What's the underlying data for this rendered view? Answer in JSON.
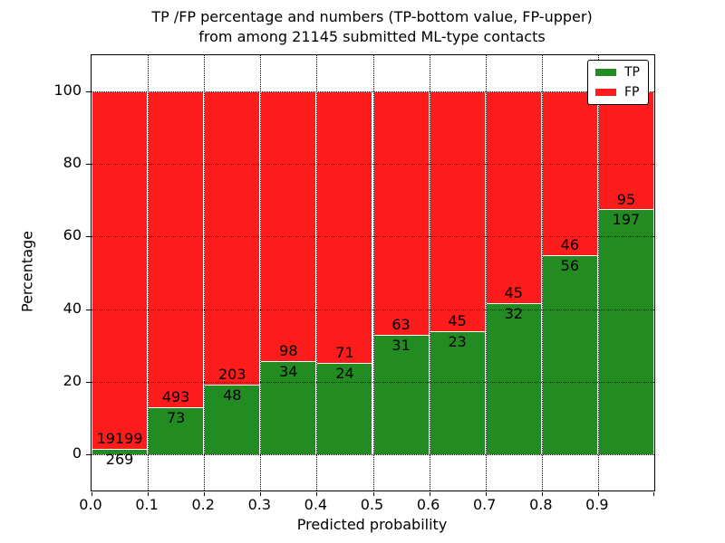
{
  "chart_data": {
    "type": "bar",
    "stacked": true,
    "title_line1": "TP /FP percentage and numbers (TP-bottom value, FP-upper)",
    "title_line2": "from among 21145 submitted ML-type contacts",
    "total_contacts": 21145,
    "xlabel": "Predicted probability",
    "ylabel": "Percentage",
    "x_tick_labels": [
      "0.0",
      "0.1",
      "0.2",
      "0.3",
      "0.4",
      "0.5",
      "0.6",
      "0.7",
      "0.8",
      "0.9"
    ],
    "y_tick_values": [
      0,
      20,
      40,
      60,
      80,
      100
    ],
    "xlim": [
      0.0,
      1.0
    ],
    "ylim": [
      -10,
      110
    ],
    "bin_width": 0.1,
    "grid": true,
    "legend_position": "upper right",
    "note": "bars stacked to 100%; green TP share = tp/(tp+fp)*100",
    "series": [
      {
        "name": "TP",
        "color": "#228b22",
        "counts": [
          269,
          73,
          48,
          34,
          24,
          31,
          23,
          32,
          56,
          197
        ]
      },
      {
        "name": "FP",
        "color": "#fd1c1c",
        "counts": [
          19199,
          493,
          203,
          98,
          71,
          63,
          45,
          45,
          46,
          95
        ]
      }
    ]
  }
}
